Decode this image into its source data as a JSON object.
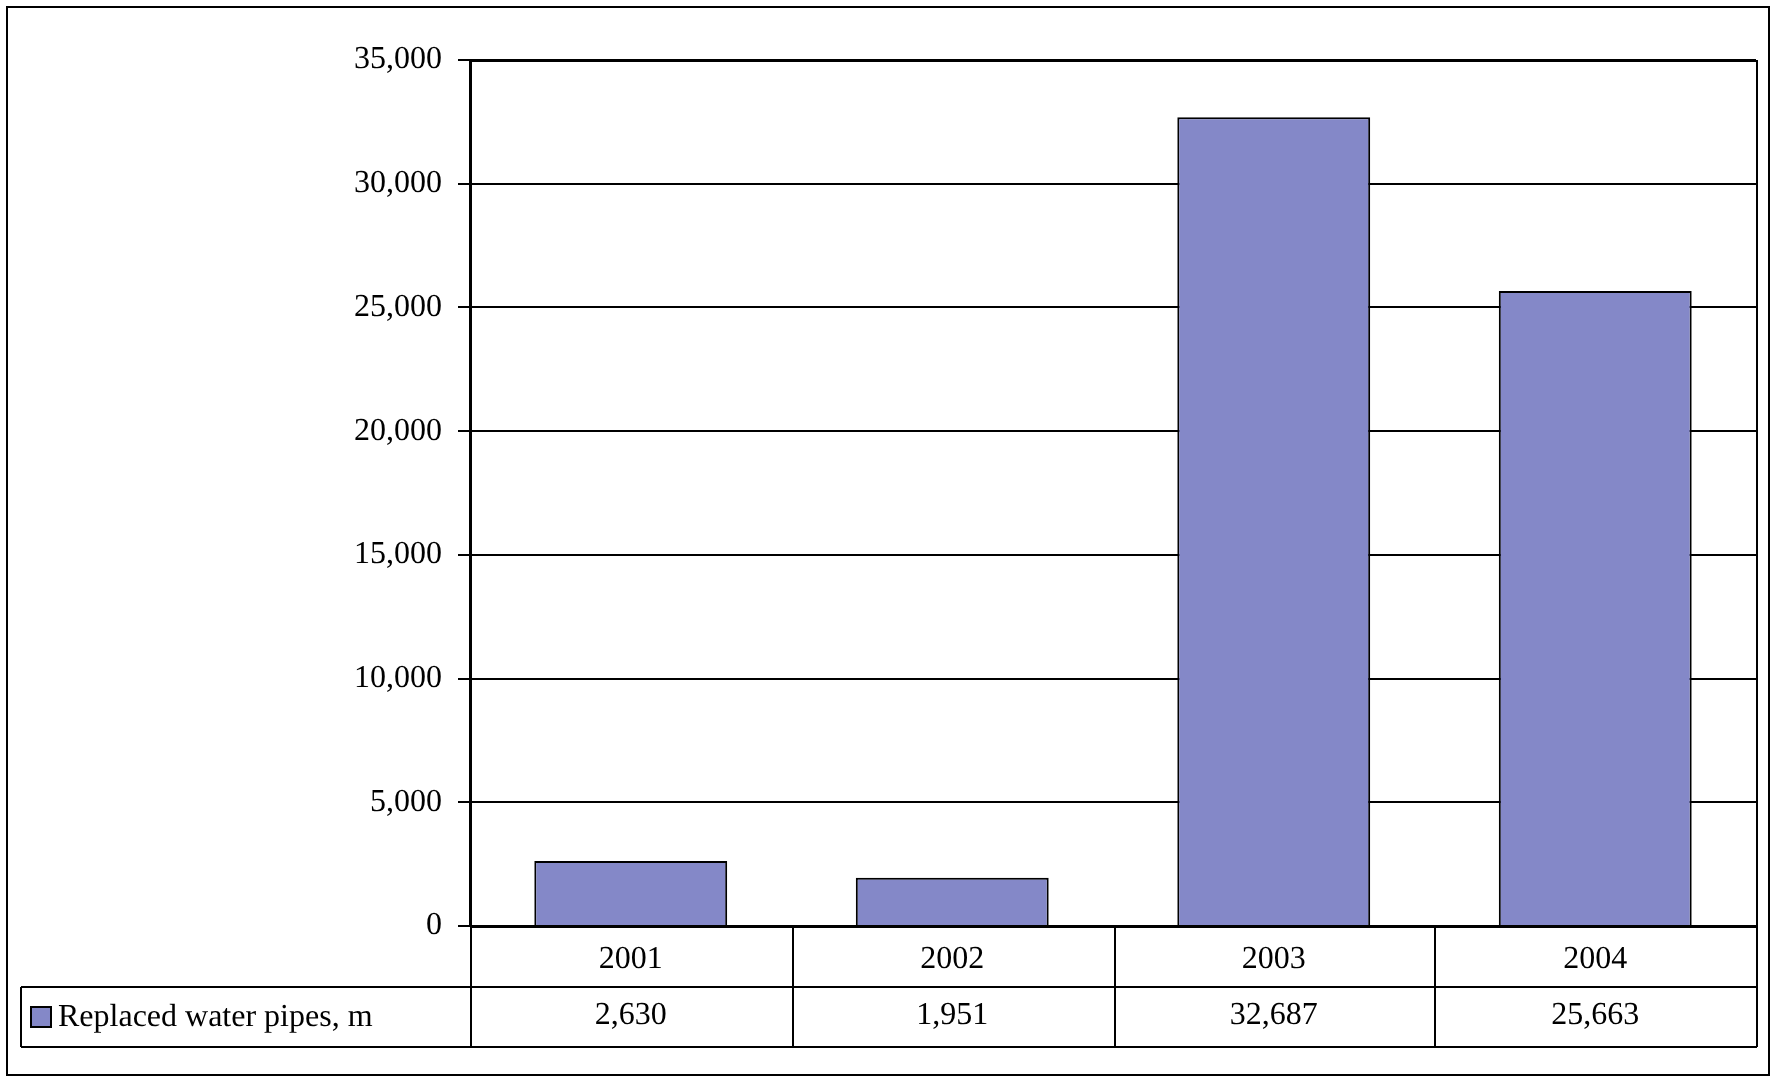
{
  "chart_data": {
    "type": "bar",
    "categories": [
      "2001",
      "2002",
      "2003",
      "2004"
    ],
    "series": [
      {
        "name": "Replaced water pipes, m",
        "color": "#8488c8",
        "values": [
          2630,
          1951,
          32687,
          25663
        ],
        "value_labels": [
          "2,630",
          "1,951",
          "32,687",
          "25,663"
        ]
      }
    ],
    "ylim": [
      0,
      35000
    ],
    "yticks": [
      {
        "value": 0,
        "label": "0"
      },
      {
        "value": 5000,
        "label": "5,000"
      },
      {
        "value": 10000,
        "label": "10,000"
      },
      {
        "value": 15000,
        "label": "15,000"
      },
      {
        "value": 20000,
        "label": "20,000"
      },
      {
        "value": 25000,
        "label": "25,000"
      },
      {
        "value": 30000,
        "label": "30,000"
      },
      {
        "value": 35000,
        "label": "35,000"
      }
    ],
    "grid": "y",
    "legend": "bottom left",
    "data_labels": true
  }
}
